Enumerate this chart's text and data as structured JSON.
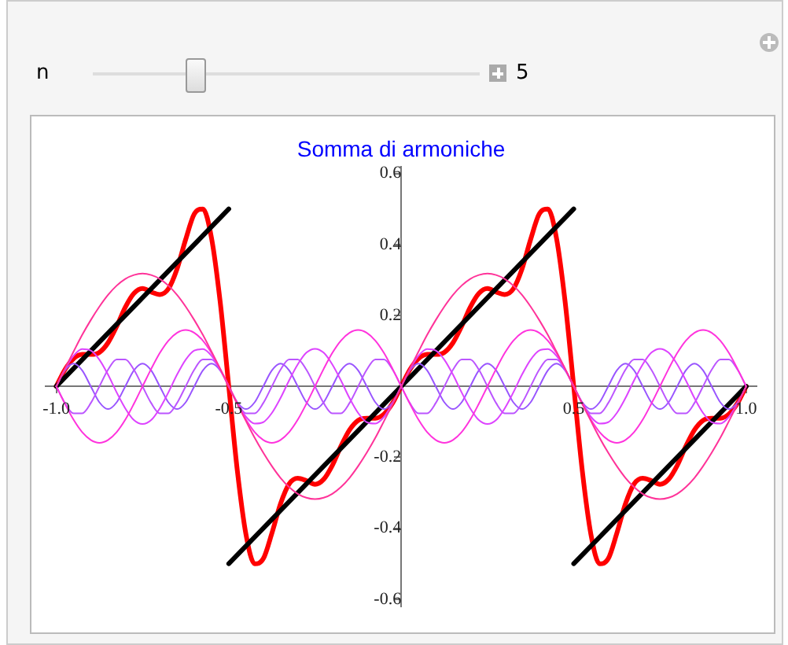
{
  "chart_data": {
    "type": "line",
    "title": "Somma di armoniche",
    "x": [
      -1,
      -0.975,
      -0.95,
      -0.925,
      -0.9,
      -0.875,
      -0.85,
      -0.825,
      -0.8,
      -0.775,
      -0.75,
      -0.725,
      -0.7,
      -0.675,
      -0.65,
      -0.625,
      -0.6,
      -0.575,
      -0.55,
      -0.525,
      -0.5,
      -0.475,
      -0.45,
      -0.425,
      -0.4,
      -0.375,
      -0.35,
      -0.325,
      -0.3,
      -0.275,
      -0.25,
      -0.225,
      -0.2,
      -0.175,
      -0.15,
      -0.125,
      -0.1,
      -0.075,
      -0.05,
      -0.025,
      0,
      0.025,
      0.05,
      0.075,
      0.1,
      0.125,
      0.15,
      0.175,
      0.2,
      0.225,
      0.25,
      0.275,
      0.3,
      0.325,
      0.35,
      0.375,
      0.4,
      0.425,
      0.45,
      0.475,
      0.5,
      0.525,
      0.55,
      0.575,
      0.6,
      0.625,
      0.65,
      0.675,
      0.7,
      0.725,
      0.75,
      0.775,
      0.8,
      0.825,
      0.85,
      0.875,
      0.9,
      0.925,
      0.95,
      0.975,
      1
    ],
    "series": [
      {
        "color": "#ff3399",
        "values": [
          0,
          0.05,
          0.098,
          0.145,
          0.187,
          0.225,
          0.258,
          0.284,
          0.303,
          0.314,
          0.318,
          0.314,
          0.303,
          0.284,
          0.258,
          0.225,
          0.187,
          0.145,
          0.098,
          0.05,
          0,
          -0.05,
          -0.098,
          -0.145,
          -0.187,
          -0.225,
          -0.258,
          -0.284,
          -0.303,
          -0.314,
          -0.318,
          -0.314,
          -0.303,
          -0.284,
          -0.258,
          -0.225,
          -0.187,
          -0.145,
          -0.098,
          -0.05,
          0,
          0.05,
          0.098,
          0.145,
          0.187,
          0.225,
          0.258,
          0.284,
          0.303,
          0.314,
          0.318,
          0.314,
          0.303,
          0.284,
          0.258,
          0.225,
          0.187,
          0.145,
          0.098,
          0.05,
          0,
          -0.05,
          -0.098,
          -0.145,
          -0.187,
          -0.225,
          -0.258,
          -0.284,
          -0.303,
          -0.314,
          -0.318,
          -0.314,
          -0.303,
          -0.284,
          -0.258,
          -0.225,
          -0.187,
          -0.145,
          -0.098,
          -0.05,
          0
        ]
      },
      {
        "color": "#ff33dd",
        "values": [
          0,
          -0.049,
          -0.094,
          -0.129,
          -0.151,
          -0.159,
          -0.151,
          -0.129,
          -0.094,
          -0.049,
          0,
          0.049,
          0.094,
          0.129,
          0.151,
          0.159,
          0.151,
          0.129,
          0.094,
          0.049,
          0,
          -0.049,
          -0.094,
          -0.129,
          -0.151,
          -0.159,
          -0.151,
          -0.129,
          -0.094,
          -0.049,
          0,
          0.049,
          0.094,
          0.129,
          0.151,
          0.159,
          0.151,
          0.129,
          0.094,
          0.049,
          0,
          -0.049,
          -0.094,
          -0.129,
          -0.151,
          -0.159,
          -0.151,
          -0.129,
          -0.094,
          -0.049,
          0,
          0.049,
          0.094,
          0.129,
          0.151,
          0.159,
          0.151,
          0.129,
          0.094,
          0.049,
          0,
          -0.049,
          -0.094,
          -0.129,
          -0.151,
          -0.159,
          -0.151,
          -0.129,
          -0.094,
          -0.049,
          0,
          0.049,
          0.094,
          0.129,
          0.151,
          0.159,
          0.151,
          0.129,
          0.094,
          0.049,
          0
        ]
      },
      {
        "color": "#dd44ff",
        "values": [
          0,
          0.048,
          0.086,
          0.105,
          0.101,
          0.075,
          0.033,
          -0.017,
          -0.062,
          -0.095,
          -0.106,
          -0.095,
          -0.062,
          -0.017,
          0.033,
          0.075,
          0.101,
          0.105,
          0.086,
          0.048,
          0,
          -0.048,
          -0.086,
          -0.105,
          -0.101,
          -0.075,
          -0.033,
          0.017,
          0.062,
          0.095,
          0.106,
          0.095,
          0.062,
          0.017,
          -0.033,
          -0.075,
          -0.101,
          -0.105,
          -0.086,
          -0.048,
          0,
          0.048,
          0.086,
          0.105,
          0.101,
          0.075,
          0.033,
          -0.017,
          -0.062,
          -0.095,
          -0.106,
          -0.095,
          -0.062,
          -0.017,
          0.033,
          0.075,
          0.101,
          0.105,
          0.086,
          0.048,
          0,
          -0.048,
          -0.086,
          -0.105,
          -0.101,
          -0.075,
          -0.033,
          0.017,
          0.062,
          0.095,
          0.106,
          0.095,
          0.062,
          0.017,
          -0.033,
          -0.075,
          -0.101,
          -0.105,
          -0.086,
          -0.048,
          0
        ]
      },
      {
        "color": "#bb55ff",
        "values": [
          0,
          -0.047,
          -0.076,
          -0.076,
          -0.047,
          0,
          0.047,
          0.076,
          0.076,
          0.047,
          0,
          -0.047,
          -0.076,
          -0.076,
          -0.047,
          0,
          0.047,
          0.076,
          0.076,
          0.047,
          0,
          -0.047,
          -0.076,
          -0.076,
          -0.047,
          0,
          0.047,
          0.076,
          0.076,
          0.047,
          0,
          -0.047,
          -0.076,
          -0.076,
          -0.047,
          0,
          0.047,
          0.076,
          0.076,
          0.047,
          0,
          -0.047,
          -0.076,
          -0.076,
          -0.047,
          0,
          0.047,
          0.076,
          0.076,
          0.047,
          0,
          -0.047,
          -0.076,
          -0.076,
          -0.047,
          0,
          0.047,
          0.076,
          0.076,
          0.047,
          0,
          -0.047,
          -0.076,
          -0.076,
          -0.047,
          0,
          0.047,
          0.076,
          0.076,
          0.047,
          0,
          -0.047,
          -0.076,
          -0.076,
          -0.047,
          0,
          0.047,
          0.076,
          0.076,
          0.047,
          0
        ]
      },
      {
        "color": "#9955ff",
        "values": [
          0,
          0.045,
          0.064,
          0.045,
          0,
          -0.045,
          -0.064,
          -0.045,
          0,
          0.045,
          0.064,
          0.045,
          0,
          -0.045,
          -0.064,
          -0.045,
          0,
          0.045,
          0.064,
          0.045,
          0,
          -0.045,
          -0.064,
          -0.045,
          0,
          0.045,
          0.064,
          0.045,
          0,
          -0.045,
          -0.064,
          -0.045,
          0,
          0.045,
          0.064,
          0.045,
          0,
          -0.045,
          -0.064,
          -0.045,
          0,
          0.045,
          0.064,
          0.045,
          0,
          -0.045,
          -0.064,
          -0.045,
          0,
          0.045,
          0.064,
          0.045,
          0,
          -0.045,
          -0.064,
          -0.045,
          0,
          0.045,
          0.064,
          0.045,
          0,
          -0.045,
          -0.064,
          -0.045,
          0,
          0.045,
          0.064,
          0.045,
          0,
          -0.045,
          -0.064,
          -0.045,
          0,
          0.045,
          0.064,
          0.045,
          0,
          -0.045,
          -0.064,
          -0.045,
          0
        ]
      },
      {
        "color": "#000000",
        "x": [
          -1,
          -0.5
        ],
        "values": [
          0,
          0.5
        ]
      },
      {
        "color": "#000000",
        "x": [
          -0.5,
          0.5
        ],
        "values": [
          -0.5,
          0.5
        ]
      },
      {
        "color": "#000000",
        "x": [
          0.5,
          1
        ],
        "values": [
          -0.5,
          0
        ]
      },
      {
        "color": "#ff0000",
        "values": [
          0,
          0.047,
          0.078,
          0.09,
          0.09,
          0.096,
          0.123,
          0.169,
          0.223,
          0.262,
          0.276,
          0.266,
          0.259,
          0.275,
          0.331,
          0.414,
          0.486,
          0.5,
          0.418,
          0.239,
          0,
          -0.239,
          -0.418,
          -0.5,
          -0.486,
          -0.414,
          -0.331,
          -0.275,
          -0.259,
          -0.266,
          -0.276,
          -0.262,
          -0.223,
          -0.169,
          -0.123,
          -0.096,
          -0.09,
          -0.09,
          -0.078,
          -0.047,
          0,
          0.047,
          0.078,
          0.09,
          0.09,
          0.096,
          0.123,
          0.169,
          0.223,
          0.262,
          0.276,
          0.266,
          0.259,
          0.275,
          0.331,
          0.414,
          0.486,
          0.5,
          0.418,
          0.239,
          0,
          -0.239,
          -0.418,
          -0.5,
          -0.486,
          -0.414,
          -0.331,
          -0.275,
          -0.259,
          -0.266,
          -0.276,
          -0.262,
          -0.223,
          -0.169,
          -0.123,
          -0.096,
          -0.09,
          -0.09,
          -0.078,
          -0.047,
          0
        ]
      }
    ],
    "xlim": [
      -1.03,
      1.03
    ],
    "xticks": [
      {
        "value": -1,
        "label": "-1.0"
      },
      {
        "value": -0.5,
        "label": "-0.5"
      },
      {
        "value": 0.5,
        "label": "0.5"
      },
      {
        "value": 1,
        "label": "1.0"
      }
    ],
    "ylim": [
      -0.62,
      0.62
    ],
    "yticks": [
      {
        "value": -0.6,
        "label": "-0.6"
      },
      {
        "value": -0.4,
        "label": "-0.4"
      },
      {
        "value": -0.2,
        "label": "-0.2"
      },
      {
        "value": 0.2,
        "label": "0.2"
      },
      {
        "value": 0.4,
        "label": "0.4"
      },
      {
        "value": 0.6,
        "label": "0.6"
      }
    ],
    "grid": false,
    "legend": false,
    "marker": "none",
    "line_style": "solid",
    "annotations": [
      "n",
      "5"
    ]
  }
}
